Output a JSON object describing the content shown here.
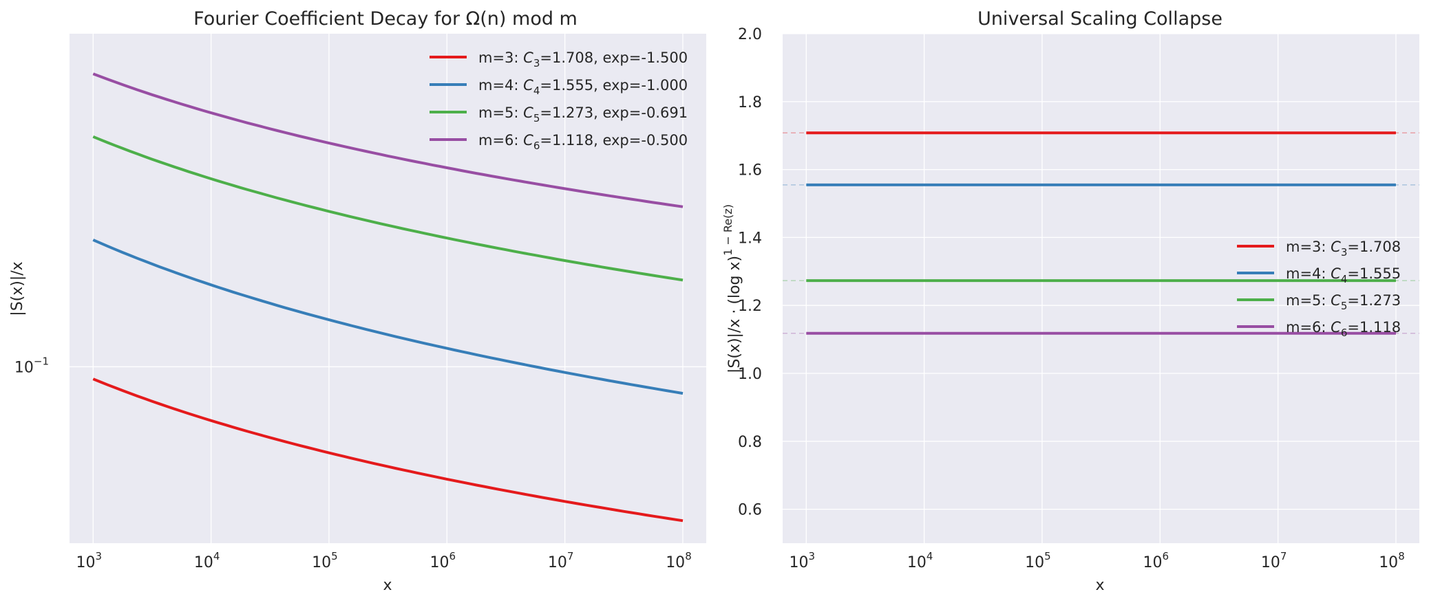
{
  "chart_data": [
    {
      "type": "line",
      "title": "Fourier Coefficient Decay for Ω(n) mod m",
      "xlabel": "x",
      "ylabel": "|S(x)|/x",
      "xscale": "log",
      "yscale": "log",
      "xlim": [
        631,
        158000000
      ],
      "ylim": [
        0.0324,
        0.84
      ],
      "xticks": [
        {
          "base": "10",
          "exp": "3"
        },
        {
          "base": "10",
          "exp": "4"
        },
        {
          "base": "10",
          "exp": "5"
        },
        {
          "base": "10",
          "exp": "6"
        },
        {
          "base": "10",
          "exp": "7"
        },
        {
          "base": "10",
          "exp": "8"
        }
      ],
      "yticks": [
        {
          "value": 0.1,
          "base": "10",
          "exp": "−1"
        }
      ],
      "legend_position": "upper right",
      "grid": true,
      "series": [
        {
          "name": "m=3",
          "color": "#e41a1c",
          "legend": {
            "prefix": "m=3: ",
            "C": "C",
            "sub": "3",
            "rest": "=1.708, exp=-1.500"
          },
          "C": 1.708,
          "exponent": -1.5,
          "x": [
            1000,
            100000000
          ],
          "y_start": 0.0925,
          "y_end": 0.0374
        },
        {
          "name": "m=4",
          "color": "#377eb8",
          "legend": {
            "prefix": "m=4: ",
            "C": "C",
            "sub": "4",
            "rest": "=1.555, exp=-1.000"
          },
          "C": 1.555,
          "exponent": -1.0,
          "x": [
            1000,
            100000000
          ],
          "y_start": 0.225,
          "y_end": 0.0844
        },
        {
          "name": "m=5",
          "color": "#4daf4a",
          "legend": {
            "prefix": "m=5: ",
            "C": "C",
            "sub": "5",
            "rest": "=1.273, exp=-0.691"
          },
          "C": 1.273,
          "exponent": -0.691,
          "x": [
            1000,
            100000000
          ],
          "y_start": 0.435,
          "y_end": 0.174
        },
        {
          "name": "m=6",
          "color": "#984ea3",
          "legend": {
            "prefix": "m=6: ",
            "C": "C",
            "sub": "6",
            "rest": "=1.118, exp=-0.500"
          },
          "C": 1.118,
          "exponent": -0.5,
          "x": [
            1000,
            100000000
          ],
          "y_start": 0.65,
          "y_end": 0.278
        }
      ]
    },
    {
      "type": "line",
      "title": "Universal Scaling Collapse",
      "xlabel": "x",
      "ylabel": {
        "main": "|S(x)|/x · (log x)",
        "sup": "1 − Re(z)"
      },
      "xscale": "log",
      "yscale": "linear",
      "xlim": [
        631,
        158000000
      ],
      "ylim": [
        0.5,
        2.0
      ],
      "xticks": [
        {
          "base": "10",
          "exp": "3"
        },
        {
          "base": "10",
          "exp": "4"
        },
        {
          "base": "10",
          "exp": "5"
        },
        {
          "base": "10",
          "exp": "6"
        },
        {
          "base": "10",
          "exp": "7"
        },
        {
          "base": "10",
          "exp": "8"
        }
      ],
      "yticks": [
        "0.6",
        "0.8",
        "1.0",
        "1.2",
        "1.4",
        "1.6",
        "1.8",
        "2.0"
      ],
      "legend_position": "center right",
      "grid": true,
      "series": [
        {
          "name": "m=3",
          "color": "#e41a1c",
          "legend": {
            "prefix": "m=3: ",
            "C": "C",
            "sub": "3",
            "rest": "=1.708"
          },
          "x": [
            1000,
            100000000
          ],
          "y": [
            1.708,
            1.708
          ],
          "reference_line": 1.708
        },
        {
          "name": "m=4",
          "color": "#377eb8",
          "legend": {
            "prefix": "m=4: ",
            "C": "C",
            "sub": "4",
            "rest": "=1.555"
          },
          "x": [
            1000,
            100000000
          ],
          "y": [
            1.555,
            1.555
          ],
          "reference_line": 1.555
        },
        {
          "name": "m=5",
          "color": "#4daf4a",
          "legend": {
            "prefix": "m=5: ",
            "C": "C",
            "sub": "5",
            "rest": "=1.273"
          },
          "x": [
            1000,
            100000000
          ],
          "y": [
            1.273,
            1.273
          ],
          "reference_line": 1.273
        },
        {
          "name": "m=6",
          "color": "#984ea3",
          "legend": {
            "prefix": "m=6: ",
            "C": "C",
            "sub": "6",
            "rest": "=1.118"
          },
          "x": [
            1000,
            100000000
          ],
          "y": [
            1.118,
            1.118
          ],
          "reference_line": 1.118
        }
      ]
    }
  ]
}
